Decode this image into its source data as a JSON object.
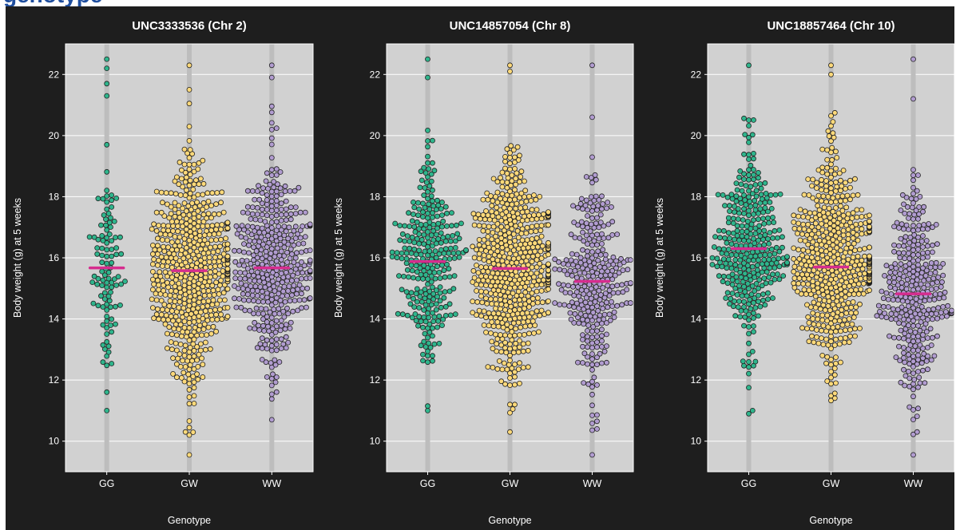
{
  "banner": {
    "title": "genotype"
  },
  "colors": {
    "background": "#1e1e1e",
    "panel": "#d1d1d1",
    "GG": "#2fb58c",
    "GW": "#fdd97a",
    "WW": "#b19cd0",
    "mean": "#d62d8e",
    "guide": "#bdbdbd",
    "grid": "#ffffff",
    "text": "#ffffff"
  },
  "chart_data": [
    {
      "type": "scatter",
      "title": "UNC3333536 (Chr 2)",
      "xlabel": "Genotype",
      "ylabel": "Body weight (g) at 5 weeks",
      "categories": [
        "GG",
        "GW",
        "WW"
      ],
      "ylim": [
        9.0,
        23.0
      ],
      "yticks": [
        10,
        12,
        14,
        16,
        18,
        20,
        22
      ],
      "grid": true,
      "mean_line_color": "#d62d8e",
      "series": [
        {
          "category": "GG",
          "mean": 15.67,
          "n": 100,
          "min": 11.0,
          "max": 22.5,
          "outliers": [
            11.0,
            22.5,
            22.2,
            21.7,
            21.3,
            19.7
          ]
        },
        {
          "category": "GW",
          "mean": 15.58,
          "n": 560,
          "min": 9.55,
          "max": 22.3,
          "outliers": [
            9.55,
            10.3,
            22.3,
            21.5
          ]
        },
        {
          "category": "WW",
          "mean": 15.67,
          "n": 420,
          "min": 10.7,
          "max": 22.3,
          "outliers": [
            22.3,
            21.9,
            10.7
          ]
        }
      ]
    },
    {
      "type": "scatter",
      "title": "UNC14857054 (Chr 8)",
      "xlabel": "Genotype",
      "ylabel": "Body weight (g) at 5 weeks",
      "categories": [
        "GG",
        "GW",
        "WW"
      ],
      "ylim": [
        9.0,
        23.0
      ],
      "yticks": [
        10,
        12,
        14,
        16,
        18,
        20,
        22
      ],
      "grid": true,
      "mean_line_color": "#d62d8e",
      "series": [
        {
          "category": "GG",
          "mean": 15.88,
          "n": 280,
          "min": 11.0,
          "max": 22.5,
          "outliers": [
            22.5,
            21.9,
            11.0,
            11.15
          ]
        },
        {
          "category": "GW",
          "mean": 15.65,
          "n": 560,
          "min": 10.3,
          "max": 22.3,
          "outliers": [
            22.3,
            22.1,
            10.3
          ]
        },
        {
          "category": "WW",
          "mean": 15.23,
          "n": 300,
          "min": 9.55,
          "max": 22.3,
          "outliers": [
            22.3,
            20.6,
            9.55
          ]
        }
      ]
    },
    {
      "type": "scatter",
      "title": "UNC18857464 (Chr 10)",
      "xlabel": "Genotype",
      "ylabel": "Body weight (g) at 5 weeks",
      "categories": [
        "GG",
        "GW",
        "WW"
      ],
      "ylim": [
        9.0,
        23.0
      ],
      "yticks": [
        10,
        12,
        14,
        16,
        18,
        20,
        22
      ],
      "grid": true,
      "mean_line_color": "#d62d8e",
      "series": [
        {
          "category": "GG",
          "mean": 16.3,
          "n": 330,
          "min": 10.9,
          "max": 22.3,
          "outliers": [
            22.3,
            10.9,
            11.0
          ]
        },
        {
          "category": "GW",
          "mean": 15.7,
          "n": 530,
          "min": 10.7,
          "max": 22.3,
          "outliers": [
            22.3,
            22.0
          ]
        },
        {
          "category": "WW",
          "mean": 14.82,
          "n": 330,
          "min": 9.55,
          "max": 22.5,
          "outliers": [
            22.5,
            21.2,
            9.55,
            10.3
          ]
        }
      ]
    }
  ]
}
